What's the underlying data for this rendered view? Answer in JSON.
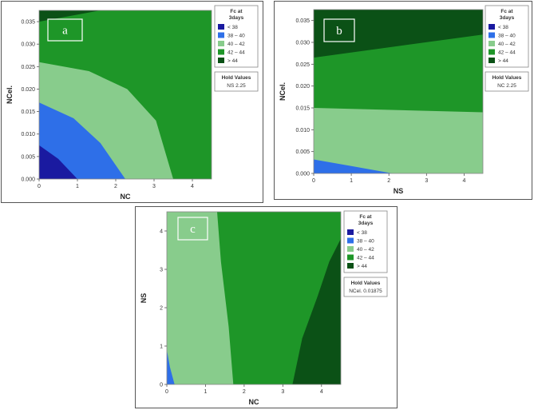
{
  "chart_data": [
    {
      "type": "contour",
      "panel_label": "a",
      "xlabel": "NC",
      "ylabel": "NCel.",
      "xlim": [
        0,
        4.5
      ],
      "ylim": [
        0,
        0.0375
      ],
      "xticks": [
        "0",
        "1",
        "2",
        "3",
        "4"
      ],
      "yticks": [
        "0.000",
        "0.005",
        "0.010",
        "0.015",
        "0.020",
        "0.025",
        "0.030",
        "0.035"
      ],
      "legend_title": "Fc at 3days",
      "legend": [
        {
          "label": "<  38",
          "color": "#1a1aa0"
        },
        {
          "label": "38  –  40",
          "color": "#2e6fe8"
        },
        {
          "label": "40  –  42",
          "color": "#88cc8c"
        },
        {
          "label": "42  –  44",
          "color": "#1e9628"
        },
        {
          "label": ">  44",
          "color": "#0b5116"
        }
      ],
      "hold_title": "Hold Values",
      "hold_values": "NS  2.25",
      "regions": [
        {
          "range": "> 44",
          "color": "#0b5116",
          "boundary": [
            [
              0,
              0
            ],
            [
              4.5,
              0
            ],
            [
              4.5,
              0.0375
            ],
            [
              0,
              0.0375
            ]
          ]
        },
        {
          "range": "42 - 44",
          "color": "#1e9628",
          "boundary": [
            [
              0,
              0
            ],
            [
              4.5,
              0
            ],
            [
              4.5,
              0.0375
            ],
            [
              1.6,
              0.0375
            ],
            [
              0,
              0.035
            ]
          ]
        },
        {
          "range": "40 - 42",
          "color": "#88cc8c",
          "boundary": [
            [
              0,
              0
            ],
            [
              3.5,
              0
            ],
            [
              3.05,
              0.013
            ],
            [
              2.3,
              0.02
            ],
            [
              1.3,
              0.024
            ],
            [
              0,
              0.026
            ]
          ]
        },
        {
          "range": "38 - 40",
          "color": "#2e6fe8",
          "boundary": [
            [
              0,
              0
            ],
            [
              2.25,
              0
            ],
            [
              1.6,
              0.008
            ],
            [
              0.9,
              0.0135
            ],
            [
              0,
              0.017
            ]
          ]
        },
        {
          "range": "< 38",
          "color": "#1a1aa0",
          "boundary": [
            [
              0,
              0
            ],
            [
              1.0,
              0
            ],
            [
              0.5,
              0.0045
            ],
            [
              0,
              0.0075
            ]
          ]
        }
      ]
    },
    {
      "type": "contour",
      "panel_label": "b",
      "xlabel": "NS",
      "ylabel": "NCel.",
      "xlim": [
        0,
        4.5
      ],
      "ylim": [
        0,
        0.0375
      ],
      "xticks": [
        "0",
        "1",
        "2",
        "3",
        "4"
      ],
      "yticks": [
        "0.000",
        "0.005",
        "0.010",
        "0.015",
        "0.020",
        "0.025",
        "0.030",
        "0.035"
      ],
      "legend_title": "Fc at 3days",
      "legend": [
        {
          "label": "<  38",
          "color": "#1a1aa0"
        },
        {
          "label": "38  –  40",
          "color": "#2e6fe8"
        },
        {
          "label": "40  –  42",
          "color": "#88cc8c"
        },
        {
          "label": "42  –  44",
          "color": "#1e9628"
        },
        {
          "label": ">  44",
          "color": "#0b5116"
        }
      ],
      "hold_title": "Hold Values",
      "hold_values": "NC  2.25",
      "regions": [
        {
          "range": "> 44",
          "color": "#0b5116",
          "boundary": [
            [
              0,
              0
            ],
            [
              4.5,
              0
            ],
            [
              4.5,
              0.0375
            ],
            [
              0,
              0.0375
            ]
          ]
        },
        {
          "range": "42 - 44",
          "color": "#1e9628",
          "boundary": [
            [
              0,
              0
            ],
            [
              4.5,
              0
            ],
            [
              4.5,
              0.0318
            ],
            [
              0,
              0.0265
            ]
          ]
        },
        {
          "range": "40 - 42",
          "color": "#88cc8c",
          "boundary": [
            [
              0,
              0
            ],
            [
              4.5,
              0
            ],
            [
              4.5,
              0.014
            ],
            [
              0,
              0.015
            ]
          ]
        },
        {
          "range": "38 - 40",
          "color": "#2e6fe8",
          "boundary": [
            [
              0,
              0
            ],
            [
              2.1,
              0
            ],
            [
              1.0,
              0.0017
            ],
            [
              0,
              0.0032
            ]
          ]
        }
      ]
    },
    {
      "type": "contour",
      "panel_label": "c",
      "xlabel": "NC",
      "ylabel": "NS",
      "xlim": [
        0,
        4.5
      ],
      "ylim": [
        0,
        4.5
      ],
      "xticks": [
        "0",
        "1",
        "2",
        "3",
        "4"
      ],
      "yticks": [
        "0",
        "1",
        "2",
        "3",
        "4"
      ],
      "legend_title": "Fc at 3days",
      "legend": [
        {
          "label": "<  38",
          "color": "#1a1aa0"
        },
        {
          "label": "38  –  40",
          "color": "#2e6fe8"
        },
        {
          "label": "40  –  42",
          "color": "#88cc8c"
        },
        {
          "label": "42  –  44",
          "color": "#1e9628"
        },
        {
          "label": ">  44",
          "color": "#0b5116"
        }
      ],
      "hold_title": "Hold Values",
      "hold_values": "NCel.  0.01875",
      "regions": [
        {
          "range": "> 44",
          "color": "#0b5116",
          "boundary": [
            [
              0,
              0
            ],
            [
              4.5,
              0
            ],
            [
              4.5,
              4.5
            ],
            [
              0,
              4.5
            ]
          ]
        },
        {
          "range": "42 - 44",
          "color": "#1e9628",
          "boundary": [
            [
              0,
              0
            ],
            [
              3.25,
              0
            ],
            [
              3.5,
              1.2
            ],
            [
              3.9,
              2.3
            ],
            [
              4.2,
              3.2
            ],
            [
              4.5,
              3.8
            ],
            [
              4.5,
              4.5
            ],
            [
              0,
              4.5
            ]
          ]
        },
        {
          "range": "40 - 42",
          "color": "#88cc8c",
          "boundary": [
            [
              0,
              0
            ],
            [
              1.72,
              0
            ],
            [
              1.6,
              1.5
            ],
            [
              1.4,
              3.2
            ],
            [
              1.3,
              4.5
            ],
            [
              0,
              4.5
            ]
          ]
        },
        {
          "range": "38 - 40",
          "color": "#2e6fe8",
          "boundary": [
            [
              0,
              0
            ],
            [
              0.2,
              0
            ],
            [
              0.08,
              0.45
            ],
            [
              0,
              0.9
            ]
          ]
        }
      ]
    }
  ]
}
